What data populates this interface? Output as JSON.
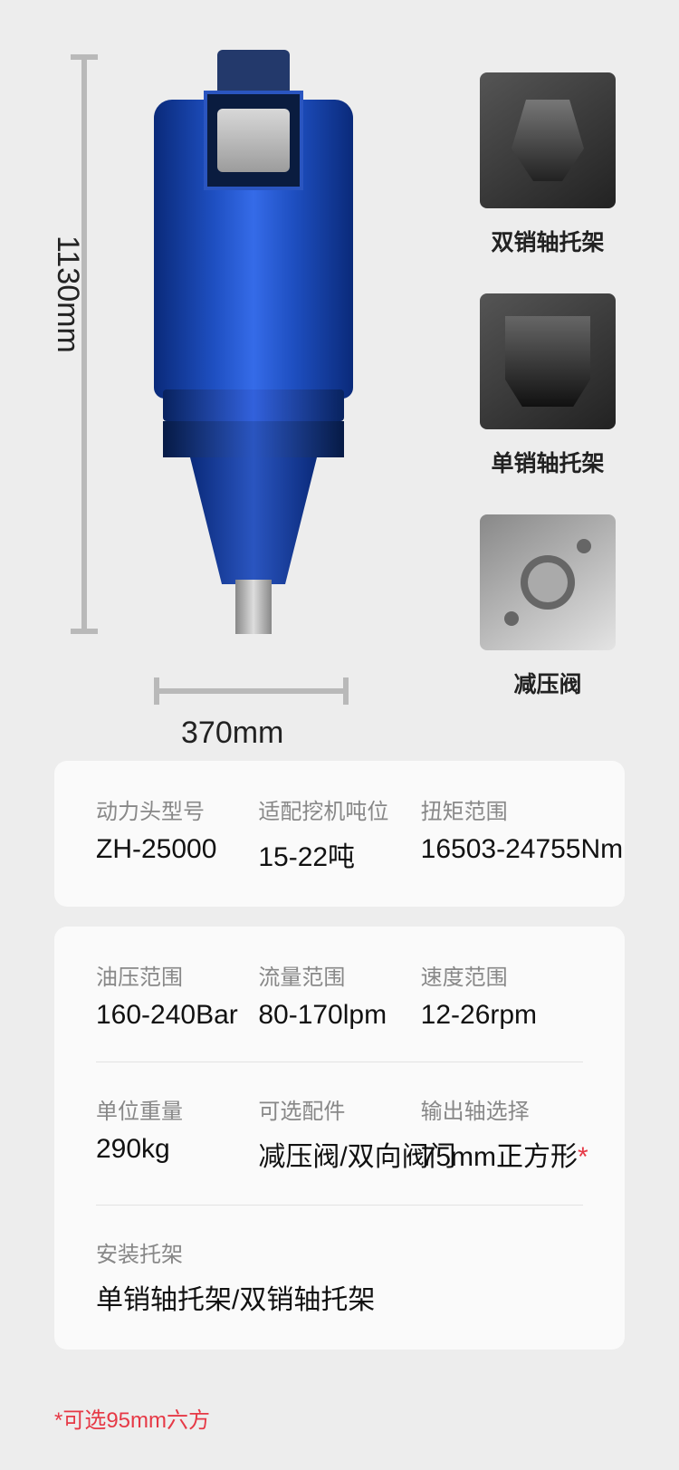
{
  "background_color": "#ededed",
  "card_bg": "#fafafa",
  "label_color": "#888888",
  "value_color": "#111111",
  "accent_color": "#e63946",
  "dimensions": {
    "height_label": "1130mm",
    "width_label": "370mm"
  },
  "thumbs": [
    {
      "label": "双销轴托架",
      "name": "double-pin-bracket"
    },
    {
      "label": "单销轴托架",
      "name": "single-pin-bracket"
    },
    {
      "label": "减压阀",
      "name": "relief-valve"
    }
  ],
  "spec_top": [
    {
      "label": "动力头型号",
      "value": "ZH-25000"
    },
    {
      "label": "适配挖机吨位",
      "value": "15-22吨"
    },
    {
      "label": "扭矩范围",
      "value": "16503-24755Nm"
    }
  ],
  "spec_mid": [
    {
      "label": "油压范围",
      "value": "160-240Bar"
    },
    {
      "label": "流量范围",
      "value": "80-170lpm"
    },
    {
      "label": "速度范围",
      "value": "12-26rpm"
    }
  ],
  "spec_low": [
    {
      "label": "单位重量",
      "value": "290kg",
      "star": false
    },
    {
      "label": "可选配件",
      "value": "减压阀/双向阀门",
      "star": false
    },
    {
      "label": "输出轴选择",
      "value": "75mm正方形",
      "star": true
    }
  ],
  "spec_bottom": {
    "label": "安装托架",
    "value": "单销轴托架/双销轴托架"
  },
  "footnote": "*可选95mm六方"
}
